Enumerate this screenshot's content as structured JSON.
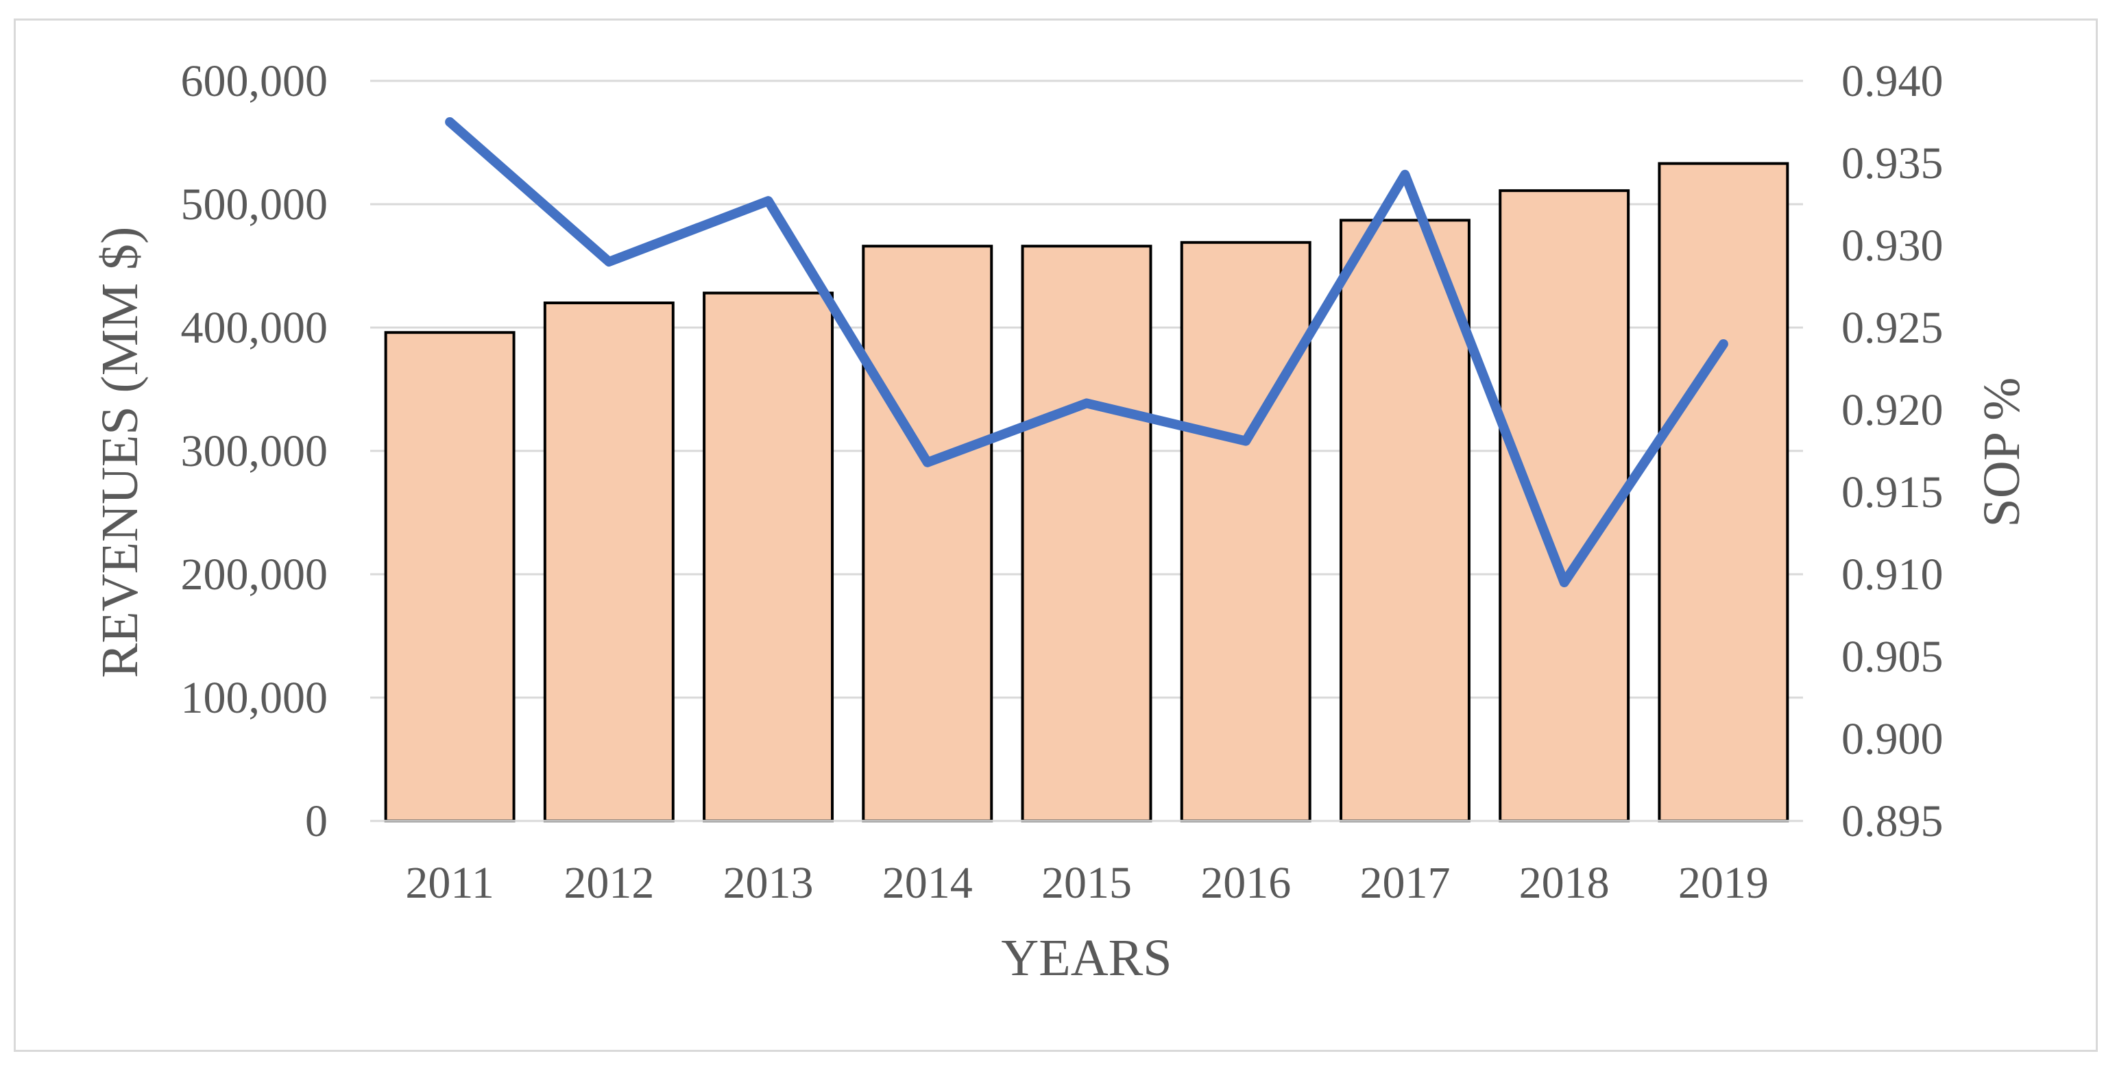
{
  "chart_data": {
    "type": "bar",
    "categories": [
      "2011",
      "2012",
      "2013",
      "2014",
      "2015",
      "2016",
      "2017",
      "2018",
      "2019"
    ],
    "series": [
      {
        "type": "bar",
        "axis": "left",
        "values": [
          396000,
          420000,
          428000,
          466000,
          466000,
          469000,
          487000,
          511000,
          533000
        ],
        "color": "#f8cbad",
        "stroke": "#000000"
      },
      {
        "type": "line",
        "axis": "right",
        "values": [
          0.9375,
          0.929,
          0.9327,
          0.9168,
          0.9204,
          0.9181,
          0.9343,
          0.9095,
          0.924
        ],
        "color": "#4472c4"
      }
    ],
    "xlabel": "YEARS",
    "ylabel": "REVENUES (MM $)",
    "y2label": "SOP %",
    "ylim": [
      0,
      600000
    ],
    "y2lim": [
      0.895,
      0.94
    ],
    "yticks": [
      "0",
      "100,000",
      "200,000",
      "300,000",
      "400,000",
      "500,000",
      "600,000"
    ],
    "y2ticks": [
      "0.895",
      "0.900",
      "0.905",
      "0.910",
      "0.915",
      "0.920",
      "0.925",
      "0.930",
      "0.935",
      "0.940"
    ],
    "grid": true,
    "grid_color": "#d9d9d9"
  }
}
